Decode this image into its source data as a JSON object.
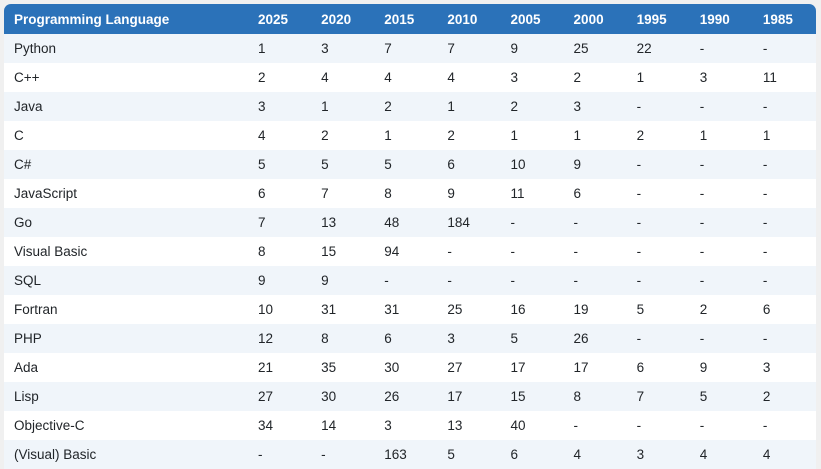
{
  "chart_data": {
    "type": "table",
    "columns": [
      "Programming Language",
      "2025",
      "2020",
      "2015",
      "2010",
      "2005",
      "2000",
      "1995",
      "1990",
      "1985"
    ],
    "rows": [
      [
        "Python",
        "1",
        "3",
        "7",
        "7",
        "9",
        "25",
        "22",
        "-",
        "-"
      ],
      [
        "C++",
        "2",
        "4",
        "4",
        "4",
        "3",
        "2",
        "1",
        "3",
        "11"
      ],
      [
        "Java",
        "3",
        "1",
        "2",
        "1",
        "2",
        "3",
        "-",
        "-",
        "-"
      ],
      [
        "C",
        "4",
        "2",
        "1",
        "2",
        "1",
        "1",
        "2",
        "1",
        "1"
      ],
      [
        "C#",
        "5",
        "5",
        "5",
        "6",
        "10",
        "9",
        "-",
        "-",
        "-"
      ],
      [
        "JavaScript",
        "6",
        "7",
        "8",
        "9",
        "11",
        "6",
        "-",
        "-",
        "-"
      ],
      [
        "Go",
        "7",
        "13",
        "48",
        "184",
        "-",
        "-",
        "-",
        "-",
        "-"
      ],
      [
        "Visual Basic",
        "8",
        "15",
        "94",
        "-",
        "-",
        "-",
        "-",
        "-",
        "-"
      ],
      [
        "SQL",
        "9",
        "9",
        "-",
        "-",
        "-",
        "-",
        "-",
        "-",
        "-"
      ],
      [
        "Fortran",
        "10",
        "31",
        "31",
        "25",
        "16",
        "19",
        "5",
        "2",
        "6"
      ],
      [
        "PHP",
        "12",
        "8",
        "6",
        "3",
        "5",
        "26",
        "-",
        "-",
        "-"
      ],
      [
        "Ada",
        "21",
        "35",
        "30",
        "27",
        "17",
        "17",
        "6",
        "9",
        "3"
      ],
      [
        "Lisp",
        "27",
        "30",
        "26",
        "17",
        "15",
        "8",
        "7",
        "5",
        "2"
      ],
      [
        "Objective-C",
        "34",
        "14",
        "3",
        "13",
        "40",
        "-",
        "-",
        "-",
        "-"
      ],
      [
        "(Visual) Basic",
        "-",
        "-",
        "163",
        "5",
        "6",
        "4",
        "3",
        "4",
        "4"
      ]
    ]
  },
  "colors": {
    "header_bg": "#2b72b9",
    "header_text": "#ffffff",
    "row_light_bg": "#f0f5fa",
    "row_white_bg": "#ffffff",
    "body_text": "#212529",
    "page_bg": "#f0f0f0"
  }
}
